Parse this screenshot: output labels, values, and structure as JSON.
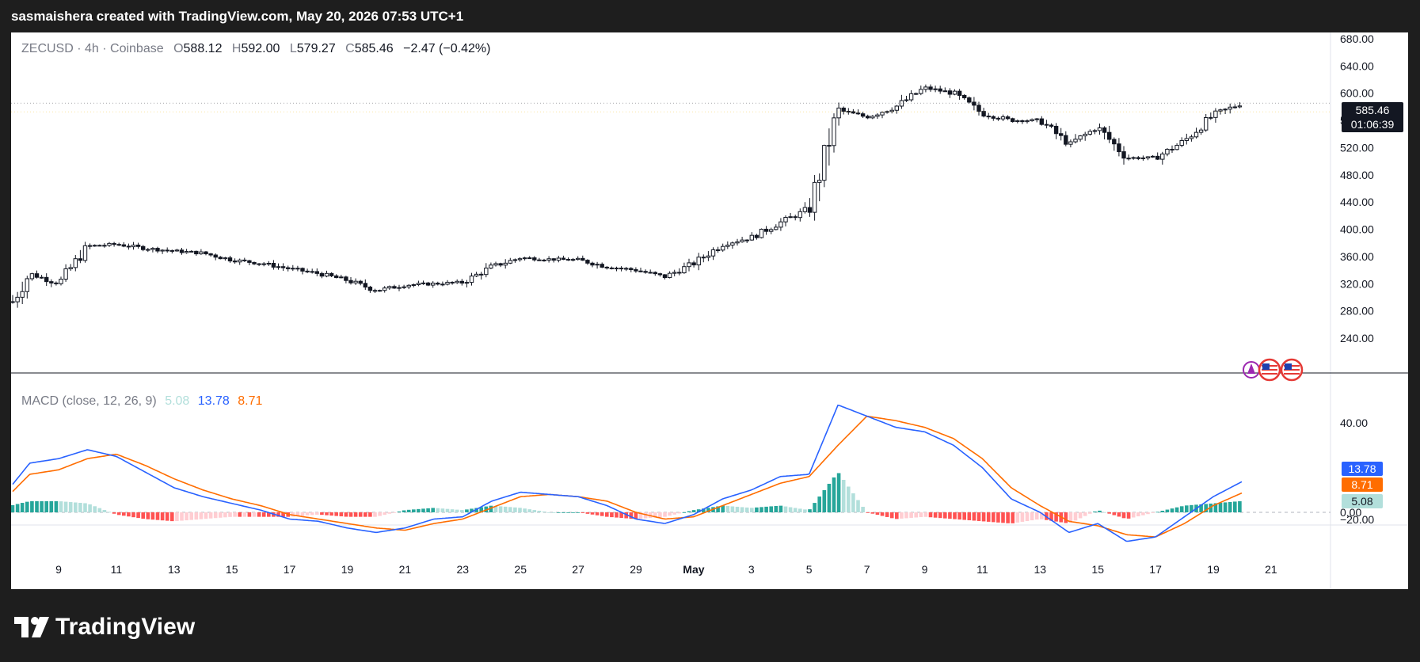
{
  "header": {
    "attribution": "sasmaishera created with TradingView.com, May 20, 2026 07:53 UTC+1"
  },
  "legend": {
    "symbol": "ZECUSD · 4h · Coinbase",
    "open_label": "O",
    "open": "588.12",
    "high_label": "H",
    "high": "592.00",
    "low_label": "L",
    "low": "579.27",
    "close_label": "C",
    "close": "585.46",
    "change": "−2.47 (−0.42%)"
  },
  "price_tag": {
    "price": "585.46",
    "countdown": "01:06:39"
  },
  "macd_legend": {
    "label": "MACD (close, 12, 26, 9)",
    "histogram": "5.08",
    "macd": "13.78",
    "signal": "8.71"
  },
  "colors": {
    "macd_line": "#2962ff",
    "signal_line": "#ff6d00",
    "hist_pos_strong": "#26a69a",
    "hist_pos_weak": "#b2dfdb",
    "hist_neg_strong": "#ff5252",
    "hist_neg_weak": "#ffcdd2",
    "candle": "#131722",
    "price_tag_bg": "#131722"
  },
  "icons": [
    "calendar-event-icon",
    "us-flag-icon",
    "us-flag-icon"
  ],
  "footer": {
    "brand": "TradingView"
  },
  "chart_data": [
    {
      "type": "candlestick",
      "title": "ZECUSD · 4h · Coinbase",
      "ylim": [
        220,
        690
      ],
      "y_ticks": [
        "680.00",
        "640.00",
        "600.00",
        "560.00",
        "520.00",
        "480.00",
        "440.00",
        "400.00",
        "360.00",
        "320.00",
        "280.00",
        "240.00"
      ],
      "x_ticks": [
        "9",
        "11",
        "13",
        "15",
        "17",
        "19",
        "21",
        "23",
        "25",
        "27",
        "29",
        "May",
        "3",
        "5",
        "7",
        "9",
        "11",
        "13",
        "15",
        "17",
        "19",
        "21"
      ],
      "approx_close_path": [
        {
          "x": "Apr 7",
          "y": 265
        },
        {
          "x": "Apr 8",
          "y": 335
        },
        {
          "x": "Apr 9",
          "y": 320
        },
        {
          "x": "Apr 10",
          "y": 375
        },
        {
          "x": "Apr 11",
          "y": 378
        },
        {
          "x": "Apr 12",
          "y": 372
        },
        {
          "x": "Apr 13",
          "y": 368
        },
        {
          "x": "Apr 14",
          "y": 365
        },
        {
          "x": "Apr 15",
          "y": 355
        },
        {
          "x": "Apr 16",
          "y": 350
        },
        {
          "x": "Apr 17",
          "y": 342
        },
        {
          "x": "Apr 18",
          "y": 335
        },
        {
          "x": "Apr 19",
          "y": 325
        },
        {
          "x": "Apr 20",
          "y": 310
        },
        {
          "x": "Apr 21",
          "y": 318
        },
        {
          "x": "Apr 22",
          "y": 320
        },
        {
          "x": "Apr 23",
          "y": 322
        },
        {
          "x": "Apr 24",
          "y": 345
        },
        {
          "x": "Apr 25",
          "y": 358
        },
        {
          "x": "Apr 26",
          "y": 356
        },
        {
          "x": "Apr 27",
          "y": 355
        },
        {
          "x": "Apr 28",
          "y": 345
        },
        {
          "x": "Apr 29",
          "y": 340
        },
        {
          "x": "Apr 30",
          "y": 330
        },
        {
          "x": "May 1",
          "y": 350
        },
        {
          "x": "May 2",
          "y": 378
        },
        {
          "x": "May 3",
          "y": 388
        },
        {
          "x": "May 4",
          "y": 410
        },
        {
          "x": "May 5",
          "y": 430
        },
        {
          "x": "May 6",
          "y": 575
        },
        {
          "x": "May 7",
          "y": 565
        },
        {
          "x": "May 8",
          "y": 580
        },
        {
          "x": "May 9",
          "y": 608
        },
        {
          "x": "May 10",
          "y": 600
        },
        {
          "x": "May 11",
          "y": 570
        },
        {
          "x": "May 12",
          "y": 560
        },
        {
          "x": "May 13",
          "y": 560
        },
        {
          "x": "May 14",
          "y": 525
        },
        {
          "x": "May 15",
          "y": 550
        },
        {
          "x": "May 16",
          "y": 505
        },
        {
          "x": "May 17",
          "y": 505
        },
        {
          "x": "May 18",
          "y": 530
        },
        {
          "x": "May 19",
          "y": 568
        },
        {
          "x": "May 20",
          "y": 585.46
        }
      ],
      "last": {
        "open": 588.12,
        "high": 592.0,
        "low": 579.27,
        "close": 585.46
      }
    },
    {
      "type": "line+bar",
      "title": "MACD (close, 12, 26, 9)",
      "ylim": [
        -22,
        62
      ],
      "y_ticks": [
        "40.00",
        "0.00",
        "−20.00"
      ],
      "series": [
        {
          "name": "MACD",
          "color": "#2962ff",
          "points": [
            {
              "x": "Apr 7",
              "y": 6
            },
            {
              "x": "Apr 8",
              "y": 22
            },
            {
              "x": "Apr 9",
              "y": 24
            },
            {
              "x": "Apr 10",
              "y": 28
            },
            {
              "x": "Apr 11",
              "y": 25
            },
            {
              "x": "Apr 12",
              "y": 18
            },
            {
              "x": "Apr 13",
              "y": 11
            },
            {
              "x": "Apr 14",
              "y": 7
            },
            {
              "x": "Apr 15",
              "y": 4
            },
            {
              "x": "Apr 16",
              "y": 1
            },
            {
              "x": "Apr 17",
              "y": -3
            },
            {
              "x": "Apr 18",
              "y": -4
            },
            {
              "x": "Apr 19",
              "y": -7
            },
            {
              "x": "Apr 20",
              "y": -9
            },
            {
              "x": "Apr 21",
              "y": -7
            },
            {
              "x": "Apr 22",
              "y": -3
            },
            {
              "x": "Apr 23",
              "y": -2
            },
            {
              "x": "Apr 24",
              "y": 5
            },
            {
              "x": "Apr 25",
              "y": 9
            },
            {
              "x": "Apr 26",
              "y": 8
            },
            {
              "x": "Apr 27",
              "y": 7
            },
            {
              "x": "Apr 28",
              "y": 3
            },
            {
              "x": "Apr 29",
              "y": -3
            },
            {
              "x": "Apr 30",
              "y": -5
            },
            {
              "x": "May 1",
              "y": -1
            },
            {
              "x": "May 2",
              "y": 6
            },
            {
              "x": "May 3",
              "y": 10
            },
            {
              "x": "May 4",
              "y": 16
            },
            {
              "x": "May 5",
              "y": 17
            },
            {
              "x": "May 6",
              "y": 48
            },
            {
              "x": "May 7",
              "y": 43
            },
            {
              "x": "May 8",
              "y": 38
            },
            {
              "x": "May 9",
              "y": 36
            },
            {
              "x": "May 10",
              "y": 30
            },
            {
              "x": "May 11",
              "y": 20
            },
            {
              "x": "May 12",
              "y": 6
            },
            {
              "x": "May 13",
              "y": 0
            },
            {
              "x": "May 14",
              "y": -9
            },
            {
              "x": "May 15",
              "y": -5
            },
            {
              "x": "May 16",
              "y": -13
            },
            {
              "x": "May 17",
              "y": -11
            },
            {
              "x": "May 18",
              "y": -2
            },
            {
              "x": "May 19",
              "y": 7
            },
            {
              "x": "May 20",
              "y": 13.78
            }
          ]
        },
        {
          "name": "Signal",
          "color": "#ff6d00",
          "points": [
            {
              "x": "Apr 7",
              "y": 4
            },
            {
              "x": "Apr 8",
              "y": 17
            },
            {
              "x": "Apr 9",
              "y": 19
            },
            {
              "x": "Apr 10",
              "y": 24
            },
            {
              "x": "Apr 11",
              "y": 26
            },
            {
              "x": "Apr 12",
              "y": 21
            },
            {
              "x": "Apr 13",
              "y": 15
            },
            {
              "x": "Apr 14",
              "y": 10
            },
            {
              "x": "Apr 15",
              "y": 6
            },
            {
              "x": "Apr 16",
              "y": 3
            },
            {
              "x": "Apr 17",
              "y": -1
            },
            {
              "x": "Apr 18",
              "y": -3
            },
            {
              "x": "Apr 19",
              "y": -5
            },
            {
              "x": "Apr 20",
              "y": -7
            },
            {
              "x": "Apr 21",
              "y": -8
            },
            {
              "x": "Apr 22",
              "y": -5
            },
            {
              "x": "Apr 23",
              "y": -3
            },
            {
              "x": "Apr 24",
              "y": 2
            },
            {
              "x": "Apr 25",
              "y": 7
            },
            {
              "x": "Apr 26",
              "y": 8
            },
            {
              "x": "Apr 27",
              "y": 7
            },
            {
              "x": "Apr 28",
              "y": 5
            },
            {
              "x": "Apr 29",
              "y": 0
            },
            {
              "x": "Apr 30",
              "y": -3
            },
            {
              "x": "May 1",
              "y": -2
            },
            {
              "x": "May 2",
              "y": 3
            },
            {
              "x": "May 3",
              "y": 8
            },
            {
              "x": "May 4",
              "y": 13
            },
            {
              "x": "May 5",
              "y": 16
            },
            {
              "x": "May 6",
              "y": 30
            },
            {
              "x": "May 7",
              "y": 43
            },
            {
              "x": "May 8",
              "y": 41
            },
            {
              "x": "May 9",
              "y": 38
            },
            {
              "x": "May 10",
              "y": 33
            },
            {
              "x": "May 11",
              "y": 24
            },
            {
              "x": "May 12",
              "y": 11
            },
            {
              "x": "May 13",
              "y": 3
            },
            {
              "x": "May 14",
              "y": -4
            },
            {
              "x": "May 15",
              "y": -6
            },
            {
              "x": "May 16",
              "y": -10
            },
            {
              "x": "May 17",
              "y": -11
            },
            {
              "x": "May 18",
              "y": -5
            },
            {
              "x": "May 19",
              "y": 3
            },
            {
              "x": "May 20",
              "y": 8.71
            }
          ]
        }
      ],
      "histogram_last": 5.08
    }
  ]
}
